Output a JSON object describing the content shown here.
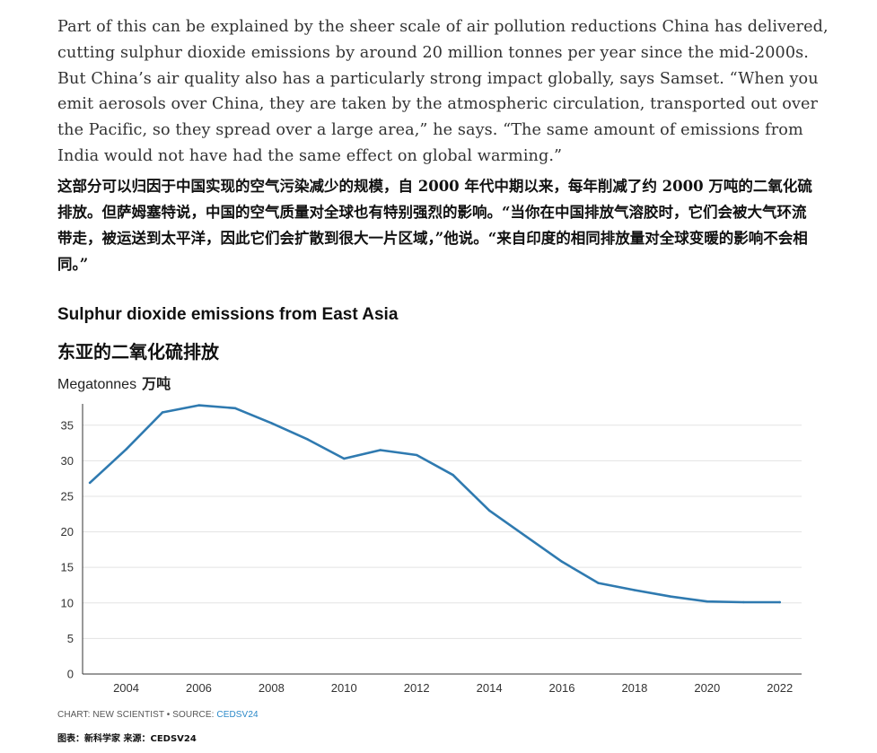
{
  "article": {
    "paragraph_en": "Part of this can be explained by the sheer scale of air pollution reductions China has delivered, cutting sulphur dioxide emissions by around 20 million tonnes per year since the mid-2000s. But China’s air quality also has a particularly strong impact globally, says Samset. “When you emit aerosols over China, they are taken by the atmospheric circulation, transported out over the Pacific, so they spread over a large area,” he says. “The same amount of emissions from India would not have had the same effect on global warming.”",
    "paragraph_zh": "这部分可以归因于中国实现的空气污染减少的规模，自 2000 年代中期以来，每年削减了约 2000 万吨的二氧化硫排放。但萨姆塞特说，中国的空气质量对全球也有特别强烈的影响。“当你在中国排放气溶胶时，它们会被大气环流带走，被运送到太平洋，因此它们会扩散到很大一片区域，”他说。“来自印度的相同排放量对全球变暖的影响不会相同。”"
  },
  "chart_data": {
    "type": "line",
    "title": "Sulphur dioxide emissions from East Asia",
    "title_zh": "东亚的二氧化硫排放",
    "ylabel": "Megatonnes",
    "ylabel_zh": "万吨",
    "xlim": [
      2002.8,
      2022.6
    ],
    "ylim": [
      0,
      38
    ],
    "x_ticks": [
      2004,
      2006,
      2008,
      2010,
      2012,
      2014,
      2016,
      2018,
      2020,
      2022
    ],
    "y_ticks": [
      0,
      5,
      10,
      15,
      20,
      25,
      30,
      35
    ],
    "grid": true,
    "line_color": "#2f7ab0",
    "series": [
      {
        "x": [
          2003,
          2004,
          2005,
          2006,
          2007,
          2008,
          2009,
          2010,
          2011,
          2012,
          2013,
          2014,
          2015,
          2016,
          2017,
          2018,
          2019,
          2020,
          2021,
          2022
        ],
        "values": [
          26.9,
          31.6,
          36.8,
          37.8,
          37.4,
          35.3,
          33.0,
          30.3,
          31.5,
          30.8,
          28.0,
          23.0,
          19.4,
          15.8,
          12.8,
          11.8,
          10.9,
          10.2,
          10.1,
          10.1
        ]
      }
    ]
  },
  "credit": {
    "label": "CHART: NEW SCIENTIST • SOURCE: ",
    "source": "CEDSV24",
    "label_zh": "图表：新科学家 来源：CEDSV24"
  }
}
